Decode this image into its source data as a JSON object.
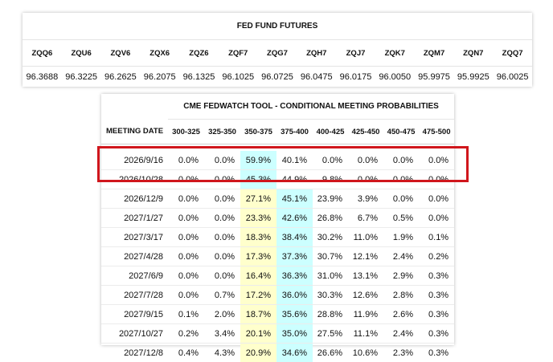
{
  "futures": {
    "title": "FED FUND FUTURES",
    "contracts": [
      {
        "code": "ZQQ6",
        "price": "96.3688"
      },
      {
        "code": "ZQU6",
        "price": "96.3225"
      },
      {
        "code": "ZQV6",
        "price": "96.2625"
      },
      {
        "code": "ZQX6",
        "price": "96.2075"
      },
      {
        "code": "ZQZ6",
        "price": "96.1325"
      },
      {
        "code": "ZQF7",
        "price": "96.1025"
      },
      {
        "code": "ZQG7",
        "price": "96.0725"
      },
      {
        "code": "ZQH7",
        "price": "96.0475"
      },
      {
        "code": "ZQJ7",
        "price": "96.0175"
      },
      {
        "code": "ZQK7",
        "price": "96.0050"
      },
      {
        "code": "ZQM7",
        "price": "95.9975"
      },
      {
        "code": "ZQN7",
        "price": "95.9925"
      },
      {
        "code": "ZQQ7",
        "price": "96.0025"
      }
    ]
  },
  "fedwatch": {
    "title": "CME FEDWATCH TOOL - CONDITIONAL MEETING PROBABILITIES",
    "date_header": "MEETING DATE",
    "ranges": [
      "300-325",
      "325-350",
      "350-375",
      "375-400",
      "400-425",
      "425-450",
      "450-475",
      "475-500"
    ],
    "rows": [
      {
        "date": "2026/9/16",
        "values": [
          "0.0%",
          "0.0%",
          "59.9%",
          "40.1%",
          "0.0%",
          "0.0%",
          "0.0%",
          "0.0%"
        ],
        "max_col": 2
      },
      {
        "date": "2026/10/28",
        "values": [
          "0.0%",
          "0.0%",
          "45.3%",
          "44.9%",
          "9.8%",
          "0.0%",
          "0.0%",
          "0.0%"
        ],
        "max_col": 2
      },
      {
        "date": "2026/12/9",
        "values": [
          "0.0%",
          "0.0%",
          "27.1%",
          "45.1%",
          "23.9%",
          "3.9%",
          "0.0%",
          "0.0%"
        ],
        "max_col": 3
      },
      {
        "date": "2027/1/27",
        "values": [
          "0.0%",
          "0.0%",
          "23.3%",
          "42.6%",
          "26.8%",
          "6.7%",
          "0.5%",
          "0.0%"
        ],
        "max_col": 3
      },
      {
        "date": "2027/3/17",
        "values": [
          "0.0%",
          "0.0%",
          "18.3%",
          "38.4%",
          "30.2%",
          "11.0%",
          "1.9%",
          "0.1%"
        ],
        "max_col": 3
      },
      {
        "date": "2027/4/28",
        "values": [
          "0.0%",
          "0.0%",
          "17.3%",
          "37.3%",
          "30.7%",
          "12.1%",
          "2.4%",
          "0.2%"
        ],
        "max_col": 3
      },
      {
        "date": "2027/6/9",
        "values": [
          "0.0%",
          "0.0%",
          "16.4%",
          "36.3%",
          "31.0%",
          "13.1%",
          "2.9%",
          "0.3%"
        ],
        "max_col": 3
      },
      {
        "date": "2027/7/28",
        "values": [
          "0.0%",
          "0.7%",
          "17.2%",
          "36.0%",
          "30.3%",
          "12.6%",
          "2.8%",
          "0.3%"
        ],
        "max_col": 3
      },
      {
        "date": "2027/9/15",
        "values": [
          "0.1%",
          "2.0%",
          "18.7%",
          "35.6%",
          "28.8%",
          "11.9%",
          "2.6%",
          "0.3%"
        ],
        "max_col": 3
      },
      {
        "date": "2027/10/27",
        "values": [
          "0.2%",
          "3.4%",
          "20.1%",
          "35.0%",
          "27.5%",
          "11.1%",
          "2.4%",
          "0.3%"
        ],
        "max_col": 3
      },
      {
        "date": "2027/12/8",
        "values": [
          "0.4%",
          "4.3%",
          "20.9%",
          "34.6%",
          "26.6%",
          "10.6%",
          "2.3%",
          "0.3%"
        ],
        "max_col": 3
      }
    ],
    "current_range_col": 2
  },
  "colors": {
    "highlight_box": "#d0161c",
    "current_range_fill": "#ffffcc",
    "max_probability_fill": "#ccffff"
  }
}
